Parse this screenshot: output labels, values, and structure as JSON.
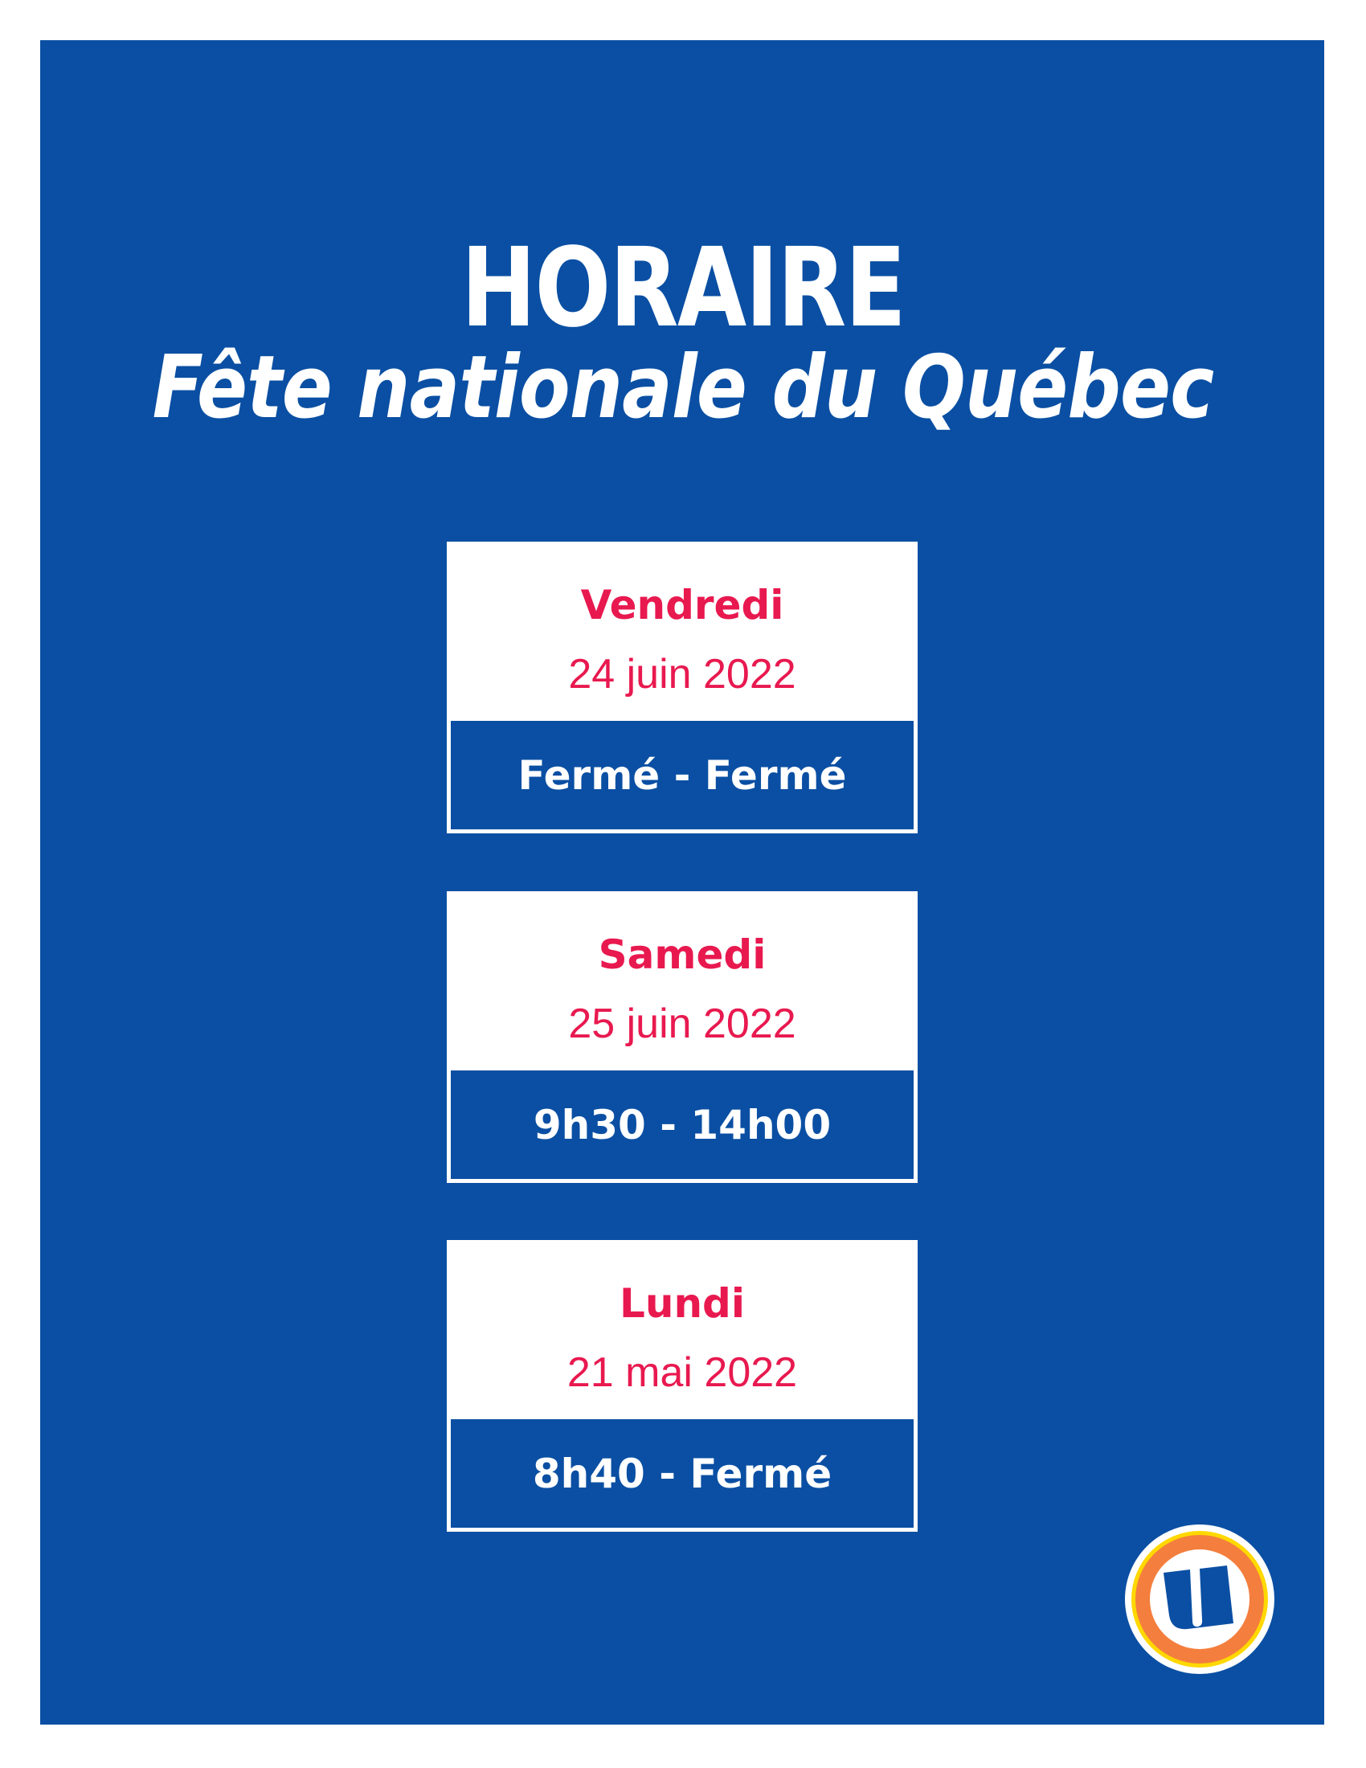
{
  "header": {
    "title": "HORAIRE",
    "subtitle": "Fête nationale du Québec"
  },
  "schedule": [
    {
      "day": "Vendredi",
      "date": "24 juin 2022",
      "hours": "Fermé - Fermé"
    },
    {
      "day": "Samedi",
      "date": "25 juin 2022",
      "hours": "9h30 - 14h00"
    },
    {
      "day": "Lundi",
      "date": "21 mai 2022",
      "hours": "8h40 - Fermé"
    }
  ],
  "colors": {
    "background": "#0a4fa3",
    "accent": "#e8194f",
    "card": "#ffffff"
  },
  "logo": {
    "icon": "u-logo-icon"
  }
}
